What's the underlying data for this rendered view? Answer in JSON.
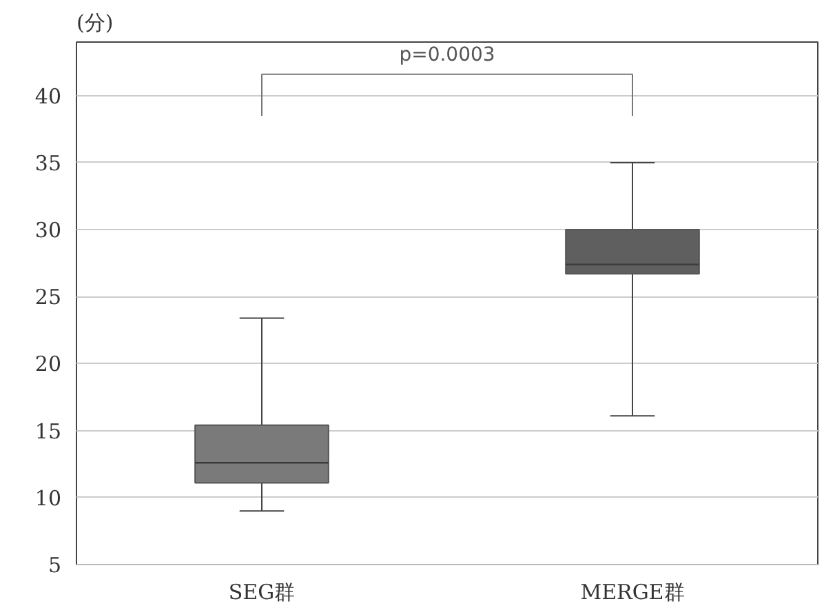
{
  "chart_data": {
    "type": "box",
    "ylabel": "(分)",
    "categories": [
      "SEG群",
      "MERGE群"
    ],
    "boxes": [
      {
        "low": 9.0,
        "q1": 11.1,
        "median": 12.6,
        "q3": 15.4,
        "high": 23.4
      },
      {
        "low": 16.1,
        "q1": 26.7,
        "median": 27.4,
        "q3": 30.0,
        "high": 35.0
      }
    ],
    "colors": [
      "#7a7a7a",
      "#5f5f5f"
    ],
    "ylim": [
      5,
      44
    ],
    "yticks": [
      5,
      10,
      15,
      20,
      25,
      30,
      35,
      40
    ],
    "grid": "y",
    "annotations": [
      "p=0.0003"
    ]
  }
}
